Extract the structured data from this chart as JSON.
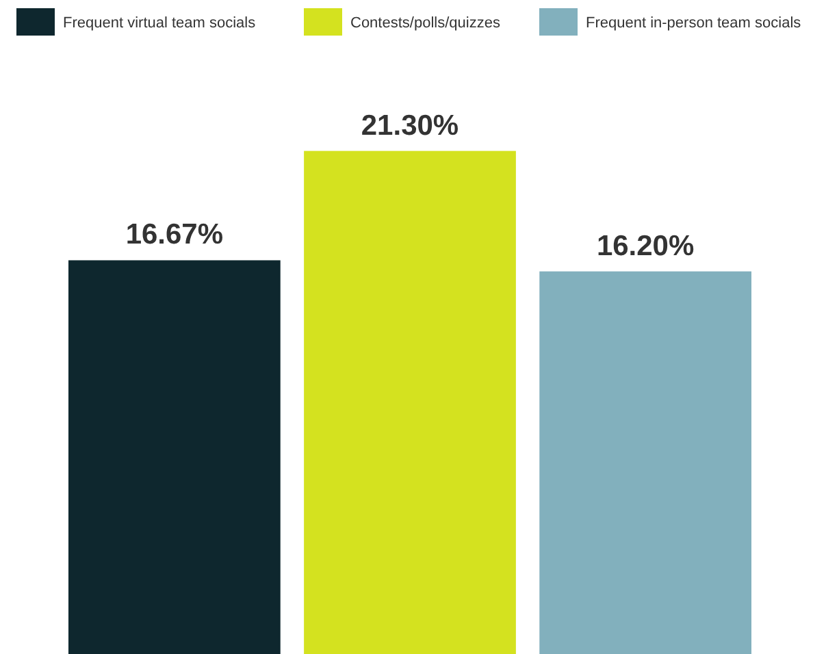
{
  "chart_data": {
    "type": "bar",
    "categories": [
      null
    ],
    "legend": "top",
    "series": [
      {
        "name": "Frequent virtual team socials",
        "color": "#0e272e",
        "values": [
          16.67
        ],
        "value_labels": [
          "16.67%"
        ]
      },
      {
        "name": "Contests/polls/quizzes",
        "color": "#d4e21f",
        "values": [
          21.3
        ],
        "value_labels": [
          "21.30%"
        ]
      },
      {
        "name": "Frequent in-person team socials",
        "color": "#82b0bd",
        "values": [
          16.2
        ],
        "value_labels": [
          "16.20%"
        ]
      }
    ]
  }
}
